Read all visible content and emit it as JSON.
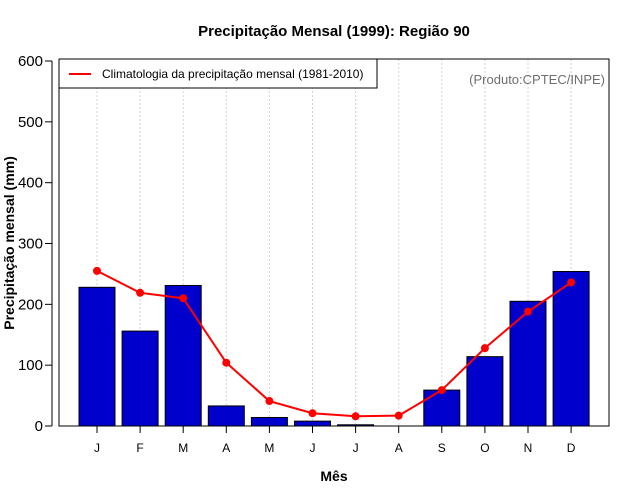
{
  "chart_data": {
    "type": "bar",
    "title": "Precipitação Mensal (1999): Região 90",
    "xlabel": "Mês",
    "ylabel": "Precipitação mensal (mm)",
    "ylim": [
      0,
      600
    ],
    "yticks": [
      0,
      100,
      200,
      300,
      400,
      500,
      600
    ],
    "categories": [
      "J",
      "F",
      "M",
      "A",
      "M",
      "J",
      "J",
      "A",
      "S",
      "O",
      "N",
      "D"
    ],
    "grid": "vertical dotted at category ticks",
    "series": [
      {
        "name": "Precipitação mensal (1999)",
        "type": "bar",
        "color": "#0000CD",
        "values": [
          228,
          156,
          231,
          33,
          14,
          8,
          2,
          0,
          59,
          114,
          205,
          254
        ]
      },
      {
        "name": "Climatologia da precipitação mensal (1981-2010)",
        "type": "line",
        "color": "#FF0000",
        "values": [
          255,
          219,
          210,
          104,
          41,
          21,
          16,
          17,
          59,
          128,
          188,
          236
        ]
      }
    ],
    "legend": {
      "placement": "top-left",
      "entries": [
        "Climatologia da precipitação mensal (1981-2010)"
      ]
    },
    "annotation": "(Produto:CPTEC/INPE)"
  }
}
